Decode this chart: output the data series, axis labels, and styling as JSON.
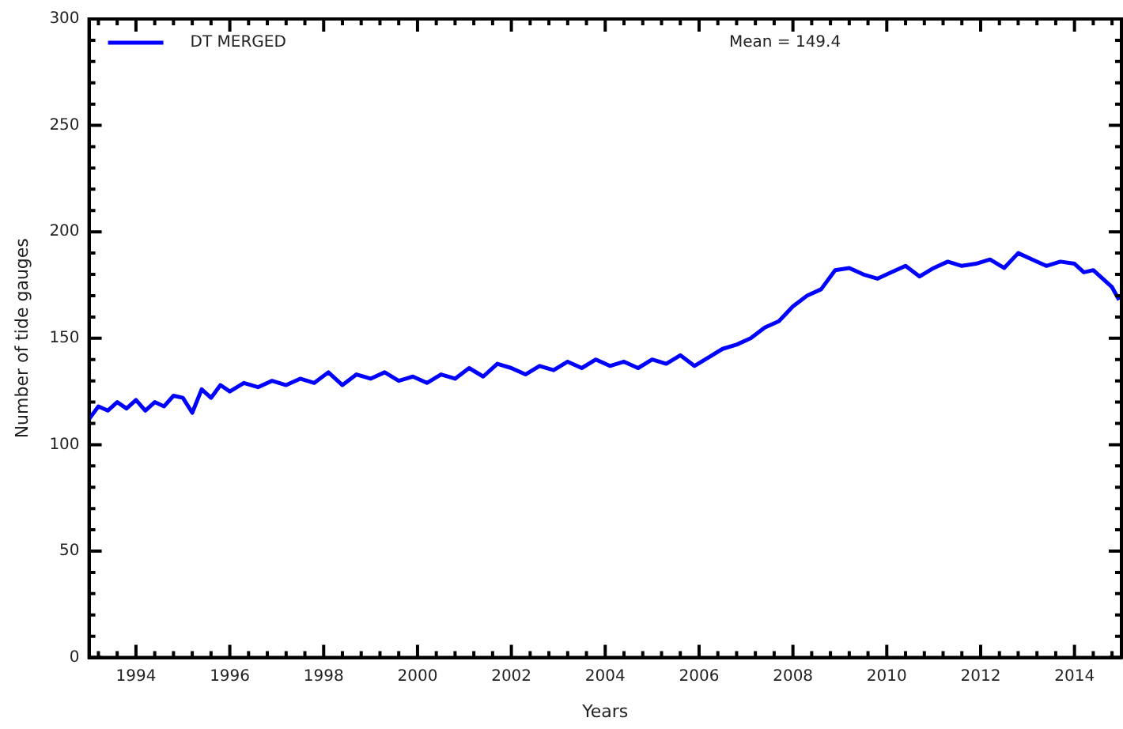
{
  "chart_data": {
    "type": "line",
    "xlabel": "Years",
    "ylabel": "Number of tide gauges",
    "legend": "top left",
    "annotations": [
      "Mean = 149.4"
    ],
    "xlim": [
      1993,
      2015
    ],
    "ylim": [
      0,
      300
    ],
    "xticks": [
      {
        "value": 1993.2,
        "label": null
      },
      {
        "value": 1993.6,
        "label": null
      },
      1994,
      {
        "value": 1994.4,
        "label": null
      },
      {
        "value": 1994.8,
        "label": null
      },
      {
        "value": 1995.2,
        "label": null
      },
      {
        "value": 1995.6,
        "label": null
      },
      1996,
      {
        "value": 1996.4,
        "label": null
      },
      {
        "value": 1996.8,
        "label": null
      },
      {
        "value": 1997.2,
        "label": null
      },
      {
        "value": 1997.6,
        "label": null
      },
      1998,
      {
        "value": 1998.4,
        "label": null
      },
      {
        "value": 1998.8,
        "label": null
      },
      {
        "value": 1999.2,
        "label": null
      },
      {
        "value": 1999.6,
        "label": null
      },
      2000,
      {
        "value": 2000.4,
        "label": null
      },
      {
        "value": 2000.8,
        "label": null
      },
      {
        "value": 2001.2,
        "label": null
      },
      {
        "value": 2001.6,
        "label": null
      },
      2002,
      {
        "value": 2002.4,
        "label": null
      },
      {
        "value": 2002.8,
        "label": null
      },
      {
        "value": 2003.2,
        "label": null
      },
      {
        "value": 2003.6,
        "label": null
      },
      2004,
      {
        "value": 2004.4,
        "label": null
      },
      {
        "value": 2004.8,
        "label": null
      },
      {
        "value": 2005.2,
        "label": null
      },
      {
        "value": 2005.6,
        "label": null
      },
      2006,
      {
        "value": 2006.4,
        "label": null
      },
      {
        "value": 2006.8,
        "label": null
      },
      {
        "value": 2007.2,
        "label": null
      },
      {
        "value": 2007.6,
        "label": null
      },
      2008,
      {
        "value": 2008.4,
        "label": null
      },
      {
        "value": 2008.8,
        "label": null
      },
      {
        "value": 2009.2,
        "label": null
      },
      {
        "value": 2009.6,
        "label": null
      },
      2010,
      {
        "value": 2010.4,
        "label": null
      },
      {
        "value": 2010.8,
        "label": null
      },
      {
        "value": 2011.2,
        "label": null
      },
      {
        "value": 2011.6,
        "label": null
      },
      2012,
      {
        "value": 2012.4,
        "label": null
      },
      {
        "value": 2012.8,
        "label": null
      },
      {
        "value": 2013.2,
        "label": null
      },
      {
        "value": 2013.6,
        "label": null
      },
      2014,
      {
        "value": 2014.4,
        "label": null
      },
      {
        "value": 2014.8,
        "label": null
      }
    ],
    "yticks": [
      0,
      {
        "value": 10,
        "label": null
      },
      {
        "value": 20,
        "label": null
      },
      {
        "value": 30,
        "label": null
      },
      {
        "value": 40,
        "label": null
      },
      50,
      {
        "value": 60,
        "label": null
      },
      {
        "value": 70,
        "label": null
      },
      {
        "value": 80,
        "label": null
      },
      {
        "value": 90,
        "label": null
      },
      100,
      {
        "value": 110,
        "label": null
      },
      {
        "value": 120,
        "label": null
      },
      {
        "value": 130,
        "label": null
      },
      {
        "value": 140,
        "label": null
      },
      150,
      {
        "value": 160,
        "label": null
      },
      {
        "value": 170,
        "label": null
      },
      {
        "value": 180,
        "label": null
      },
      {
        "value": 190,
        "label": null
      },
      200,
      {
        "value": 210,
        "label": null
      },
      {
        "value": 220,
        "label": null
      },
      {
        "value": 230,
        "label": null
      },
      {
        "value": 240,
        "label": null
      },
      250,
      {
        "value": 260,
        "label": null
      },
      {
        "value": 270,
        "label": null
      },
      {
        "value": 280,
        "label": null
      },
      {
        "value": 290,
        "label": null
      },
      300
    ],
    "grid": false,
    "series": [
      {
        "name": "DT MERGED",
        "color": "#0000ff",
        "x": [
          1993.0,
          1993.2,
          1993.4,
          1993.6,
          1993.8,
          1994.0,
          1994.2,
          1994.4,
          1994.6,
          1994.8,
          1995.0,
          1995.2,
          1995.4,
          1995.6,
          1995.8,
          1996.0,
          1996.3,
          1996.6,
          1996.9,
          1997.2,
          1997.5,
          1997.8,
          1998.1,
          1998.4,
          1998.7,
          1999.0,
          1999.3,
          1999.6,
          1999.9,
          2000.2,
          2000.5,
          2000.8,
          2001.1,
          2001.4,
          2001.7,
          2002.0,
          2002.3,
          2002.6,
          2002.9,
          2003.2,
          2003.5,
          2003.8,
          2004.1,
          2004.4,
          2004.7,
          2005.0,
          2005.3,
          2005.6,
          2005.9,
          2006.2,
          2006.5,
          2006.8,
          2007.1,
          2007.4,
          2007.7,
          2008.0,
          2008.3,
          2008.6,
          2008.9,
          2009.2,
          2009.5,
          2009.8,
          2010.1,
          2010.4,
          2010.7,
          2011.0,
          2011.3,
          2011.6,
          2011.9,
          2012.2,
          2012.5,
          2012.8,
          2013.1,
          2013.4,
          2013.7,
          2014.0,
          2014.2,
          2014.4,
          2014.6,
          2014.8,
          2014.95
        ],
        "values": [
          112,
          118,
          116,
          120,
          117,
          121,
          116,
          120,
          118,
          123,
          122,
          115,
          126,
          122,
          128,
          125,
          129,
          127,
          130,
          128,
          131,
          129,
          134,
          128,
          133,
          131,
          134,
          130,
          132,
          129,
          133,
          131,
          136,
          132,
          138,
          136,
          133,
          137,
          135,
          139,
          136,
          140,
          137,
          139,
          136,
          140,
          138,
          142,
          137,
          141,
          145,
          147,
          150,
          155,
          158,
          165,
          170,
          173,
          182,
          183,
          180,
          178,
          181,
          184,
          179,
          183,
          186,
          184,
          185,
          187,
          183,
          190,
          187,
          184,
          186,
          185,
          181,
          182,
          178,
          174,
          168
        ]
      }
    ]
  }
}
